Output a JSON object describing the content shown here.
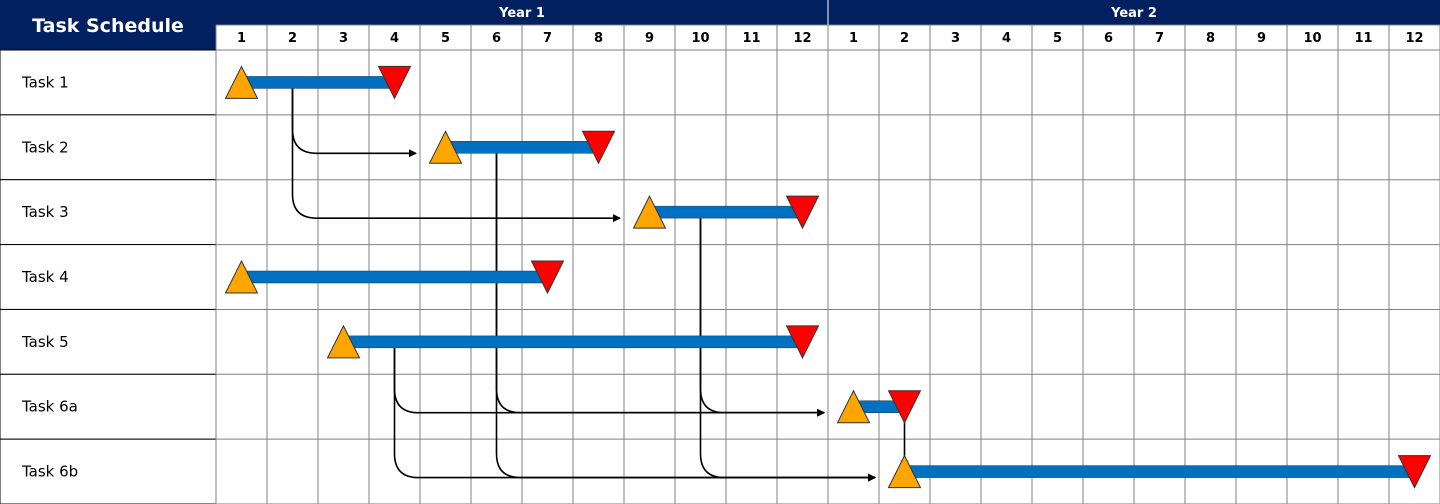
{
  "chart_data": {
    "type": "gantt",
    "title": "Task Schedule",
    "years": [
      {
        "label": "Year 1",
        "months": [
          "1",
          "2",
          "3",
          "4",
          "5",
          "6",
          "7",
          "8",
          "9",
          "10",
          "11",
          "12"
        ]
      },
      {
        "label": "Year 2",
        "months": [
          "1",
          "2",
          "3",
          "4",
          "5",
          "6",
          "7",
          "8",
          "9",
          "10",
          "11",
          "12"
        ]
      }
    ],
    "tasks": [
      {
        "id": "t1",
        "label": "Task 1",
        "start": 1,
        "end": 4
      },
      {
        "id": "t2",
        "label": "Task 2",
        "start": 5,
        "end": 8
      },
      {
        "id": "t3",
        "label": "Task 3",
        "start": 9,
        "end": 12
      },
      {
        "id": "t4",
        "label": "Task 4",
        "start": 1,
        "end": 7
      },
      {
        "id": "t5",
        "label": "Task 5",
        "start": 3,
        "end": 12
      },
      {
        "id": "t6a",
        "label": "Task 6a",
        "start": 13,
        "end": 14
      },
      {
        "id": "t6b",
        "label": "Task 6b",
        "start": 14,
        "end": 24
      }
    ],
    "dependencies": [
      {
        "from": "t1",
        "to": "t2"
      },
      {
        "from": "t1",
        "to": "t3"
      },
      {
        "from": "t2",
        "to": "t6a"
      },
      {
        "from": "t5",
        "to": "t6a"
      },
      {
        "from": "t3",
        "to": "t6a"
      },
      {
        "from": "t2",
        "to": "t6b"
      },
      {
        "from": "t5",
        "to": "t6b"
      },
      {
        "from": "t3",
        "to": "t6b"
      },
      {
        "from": "t6a",
        "to": "t6b"
      }
    ],
    "colors": {
      "header_bg": "#002060",
      "bar": "#0070C0",
      "start_marker": "#FFA500",
      "end_marker": "#FF0000",
      "grid": "#808080",
      "arrow": "#000000"
    }
  }
}
